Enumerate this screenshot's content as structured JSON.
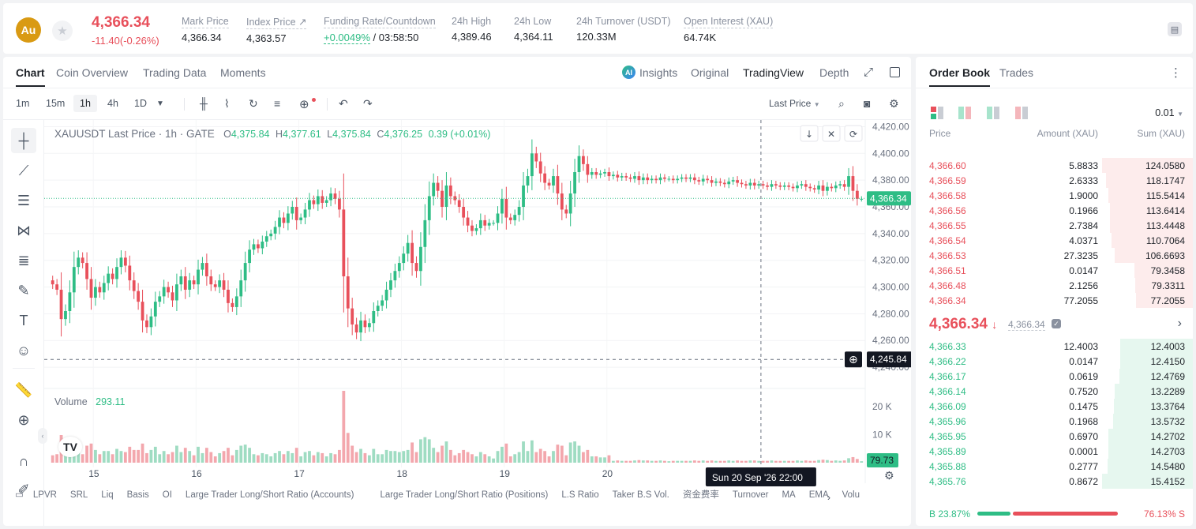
{
  "header": {
    "logo_text": "Au",
    "last_price": "4,366.34",
    "change": "-11.40(-0.26%)",
    "stats": [
      {
        "label": "Mark Price",
        "value": "4,366.34"
      },
      {
        "label": "Index Price ↗",
        "value": "4,363.57"
      },
      {
        "label": "Funding Rate/Countdown",
        "value_green": "+0.0049%",
        "value": " / 03:58:50"
      },
      {
        "label": "24h High",
        "value": "4,389.46"
      },
      {
        "label": "24h Low",
        "value": "4,364.11"
      },
      {
        "label": "24h Turnover (USDT)",
        "value": "120.33M"
      },
      {
        "label": "Open Interest (XAU)",
        "value": "64.74K"
      }
    ]
  },
  "chart_tabs": [
    "Chart",
    "Coin Overview",
    "Trading Data",
    "Moments"
  ],
  "chart_views": {
    "insights": "Insights",
    "original": "Original",
    "tradingview": "TradingView",
    "depth": "Depth"
  },
  "timeframes": [
    "1m",
    "15m",
    "1h",
    "4h",
    "1D"
  ],
  "active_timeframe": "1h",
  "price_source": "Last Price",
  "legend": {
    "symbol": "XAUUSDT Last Price · 1h · GATE",
    "o": "4,375.84",
    "h": "4,377.61",
    "l": "4,375.84",
    "c": "4,376.25",
    "chg": "0.39 (+0.01%)"
  },
  "volume_legend": {
    "label": "Volume",
    "value": "293.11"
  },
  "crosshair": {
    "price": "4,245.84",
    "time": "Sun 20 Sep '26   22:00"
  },
  "volume_last": "79.73",
  "indicators": [
    "LPVR",
    "SRL",
    "Liq",
    "Basis",
    "OI",
    "Large Trader Long/Short Ratio (Accounts)",
    "Large Trader Long/Short Ratio (Positions)",
    "L.S Ratio",
    "Taker B.S Vol.",
    "资金费率",
    "Turnover",
    "MA",
    "EMA",
    "Volu"
  ],
  "chart_data": {
    "type": "candlestick",
    "symbol": "XAUUSDT",
    "interval": "1h",
    "y_ticks": [
      4240,
      4260,
      4280,
      4300,
      4320,
      4340,
      4360,
      4380,
      4400,
      4420
    ],
    "y_labels": [
      "4,240.00",
      "4,260.00",
      "4,280.00",
      "4,300.00",
      "4,320.00",
      "4,340.00",
      "4,360.00",
      "4,380.00",
      "4,400.00",
      "4,420.00"
    ],
    "ylim": [
      4230,
      4425
    ],
    "x_labels": [
      "15",
      "16",
      "17",
      "18",
      "19",
      "20"
    ],
    "volume_ticks": [
      "10 K",
      "20 K"
    ],
    "volume_ylim": [
      0,
      20000
    ],
    "last_price": 4366.34,
    "crosshair_price": 4245.84,
    "close": [
      4302,
      4298,
      4276,
      4282,
      4296,
      4315,
      4322,
      4318,
      4306,
      4292,
      4300,
      4296,
      4303,
      4310,
      4306,
      4315,
      4322,
      4316,
      4305,
      4297,
      4289,
      4275,
      4270,
      4278,
      4289,
      4293,
      4300,
      4296,
      4290,
      4302,
      4308,
      4298,
      4305,
      4302,
      4313,
      4318,
      4308,
      4302,
      4300,
      4305,
      4298,
      4288,
      4285,
      4293,
      4305,
      4318,
      4328,
      4332,
      4329,
      4334,
      4338,
      4340,
      4345,
      4352,
      4348,
      4355,
      4360,
      4350,
      4352,
      4358,
      4365,
      4362,
      4368,
      4363,
      4365,
      4370,
      4366,
      4358,
      4308,
      4284,
      4272,
      4266,
      4275,
      4270,
      4273,
      4282,
      4286,
      4290,
      4298,
      4305,
      4312,
      4318,
      4325,
      4333,
      4318,
      4312,
      4330,
      4350,
      4368,
      4378,
      4372,
      4360,
      4376,
      4368,
      4365,
      4360,
      4352,
      4346,
      4342,
      4344,
      4350,
      4346,
      4348,
      4348,
      4355,
      4366,
      4352,
      4350,
      4354,
      4360,
      4376,
      4383,
      4400,
      4394,
      4385,
      4378,
      4376,
      4383,
      4370,
      4358,
      4355,
      4370,
      4386,
      4398,
      4392,
      4384,
      4386,
      4384,
      4385,
      4386,
      4383,
      4384,
      4382,
      4383,
      4382,
      4381,
      4383,
      4380,
      4382,
      4380,
      4381,
      4380,
      4382,
      4381,
      4381,
      4380,
      4381,
      4382,
      4381,
      4382,
      4380,
      4379,
      4381,
      4380,
      4378,
      4379,
      4378,
      4377,
      4379,
      4380,
      4378,
      4377,
      4376,
      4378,
      4376,
      4377,
      4376,
      4375,
      4377,
      4376,
      4375,
      4376,
      4375,
      4374,
      4376,
      4377,
      4375,
      4374,
      4373,
      4376,
      4372,
      4375,
      4374,
      4376,
      4377,
      4375,
      4383,
      4372,
      4366,
      4366
    ]
  },
  "orderbook": {
    "tabs": [
      "Order Book",
      "Trades"
    ],
    "precision": "0.01",
    "headers": {
      "price": "Price",
      "amount": "Amount (XAU)",
      "sum": "Sum (XAU)"
    },
    "asks": [
      {
        "price": "4,366.60",
        "amount": "5.8833",
        "sum": "124.0580",
        "depth": 1.0
      },
      {
        "price": "4,366.59",
        "amount": "2.6333",
        "sum": "118.1747",
        "depth": 0.953
      },
      {
        "price": "4,366.58",
        "amount": "1.9000",
        "sum": "115.5414",
        "depth": 0.931
      },
      {
        "price": "4,366.56",
        "amount": "0.1966",
        "sum": "113.6414",
        "depth": 0.916
      },
      {
        "price": "4,366.55",
        "amount": "2.7384",
        "sum": "113.4448",
        "depth": 0.914
      },
      {
        "price": "4,366.54",
        "amount": "4.0371",
        "sum": "110.7064",
        "depth": 0.892
      },
      {
        "price": "4,366.53",
        "amount": "27.3235",
        "sum": "106.6693",
        "depth": 0.86
      },
      {
        "price": "4,366.51",
        "amount": "0.0147",
        "sum": "79.3458",
        "depth": 0.64
      },
      {
        "price": "4,366.48",
        "amount": "2.1256",
        "sum": "79.3311",
        "depth": 0.639
      },
      {
        "price": "4,366.34",
        "amount": "77.2055",
        "sum": "77.2055",
        "depth": 0.622
      }
    ],
    "mid_price": "4,366.34",
    "mid_mark": "4,366.34",
    "bids": [
      {
        "price": "4,366.33",
        "amount": "12.4003",
        "sum": "12.4003",
        "depth": 0.8
      },
      {
        "price": "4,366.22",
        "amount": "0.0147",
        "sum": "12.4150",
        "depth": 0.8
      },
      {
        "price": "4,366.17",
        "amount": "0.0619",
        "sum": "12.4769",
        "depth": 0.81
      },
      {
        "price": "4,366.14",
        "amount": "0.7520",
        "sum": "13.2289",
        "depth": 0.86
      },
      {
        "price": "4,366.09",
        "amount": "0.1475",
        "sum": "13.3764",
        "depth": 0.87
      },
      {
        "price": "4,365.96",
        "amount": "0.1968",
        "sum": "13.5732",
        "depth": 0.88
      },
      {
        "price": "4,365.95",
        "amount": "0.6970",
        "sum": "14.2702",
        "depth": 0.93
      },
      {
        "price": "4,365.89",
        "amount": "0.0001",
        "sum": "14.2703",
        "depth": 0.93
      },
      {
        "price": "4,365.88",
        "amount": "0.2777",
        "sum": "14.5480",
        "depth": 0.94
      },
      {
        "price": "4,365.76",
        "amount": "0.8672",
        "sum": "15.4152",
        "depth": 1.0
      }
    ],
    "buy_ratio": "B 23.87%",
    "sell_ratio": "76.13% S",
    "buy_fraction": 0.2387
  },
  "colors": {
    "up": "#2ebd85",
    "down": "#e8505b",
    "accent": "#d99a13"
  }
}
